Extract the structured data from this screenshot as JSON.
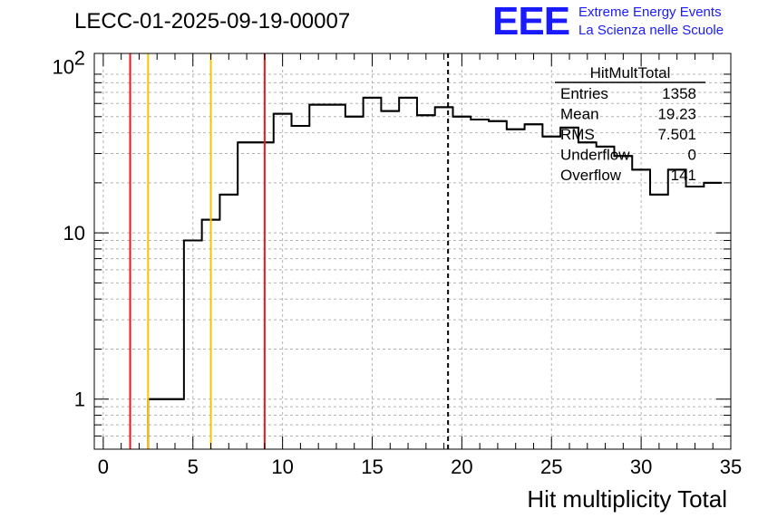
{
  "page": {
    "title": "LECC-01-2025-09-19-00007"
  },
  "logo": {
    "mark": "EEE",
    "line1": "Extreme Energy Events",
    "line2": "La Scienza nelle Scuole",
    "color": "#1a1aff"
  },
  "stats": {
    "title": "HitMultTotal",
    "rows": [
      {
        "label": "Entries",
        "value": "1358"
      },
      {
        "label": "Mean",
        "value": "19.23"
      },
      {
        "label": "RMS",
        "value": "7.501"
      },
      {
        "label": "Underflow",
        "value": "0"
      },
      {
        "label": "Overflow",
        "value": "141"
      }
    ]
  },
  "chart_data": {
    "type": "histogram",
    "xlabel": "Hit multiplicity Total",
    "ylabel": "",
    "xlim": [
      -0.5,
      35
    ],
    "ylim": [
      0.5,
      120
    ],
    "yscale": "log",
    "grid": true,
    "x_ticks": [
      0,
      5,
      10,
      15,
      20,
      25,
      30,
      35
    ],
    "y_ticks": [
      {
        "value": 1,
        "label": "1"
      },
      {
        "value": 10,
        "label": "10"
      },
      {
        "value": 100,
        "label": "10",
        "exponent": "2"
      }
    ],
    "bin_width": 1,
    "bin_start": 2.5,
    "counts": [
      1,
      1,
      9,
      12,
      17,
      35,
      35,
      52,
      44,
      59,
      59,
      50,
      65,
      54,
      65,
      51,
      57,
      50,
      48,
      47,
      42,
      45,
      38,
      43,
      35,
      33,
      29,
      24,
      17,
      24,
      19,
      20
    ],
    "vertical_lines": [
      {
        "x": 1.5,
        "color": "#e8191c",
        "style": "solid"
      },
      {
        "x": 9.0,
        "color": "#e8191c",
        "style": "solid"
      },
      {
        "x": 2.5,
        "color": "#f5c400",
        "style": "solid"
      },
      {
        "x": 6.0,
        "color": "#f5c400",
        "style": "solid"
      },
      {
        "x": 19.23,
        "color": "#000000",
        "style": "dashed"
      }
    ]
  }
}
